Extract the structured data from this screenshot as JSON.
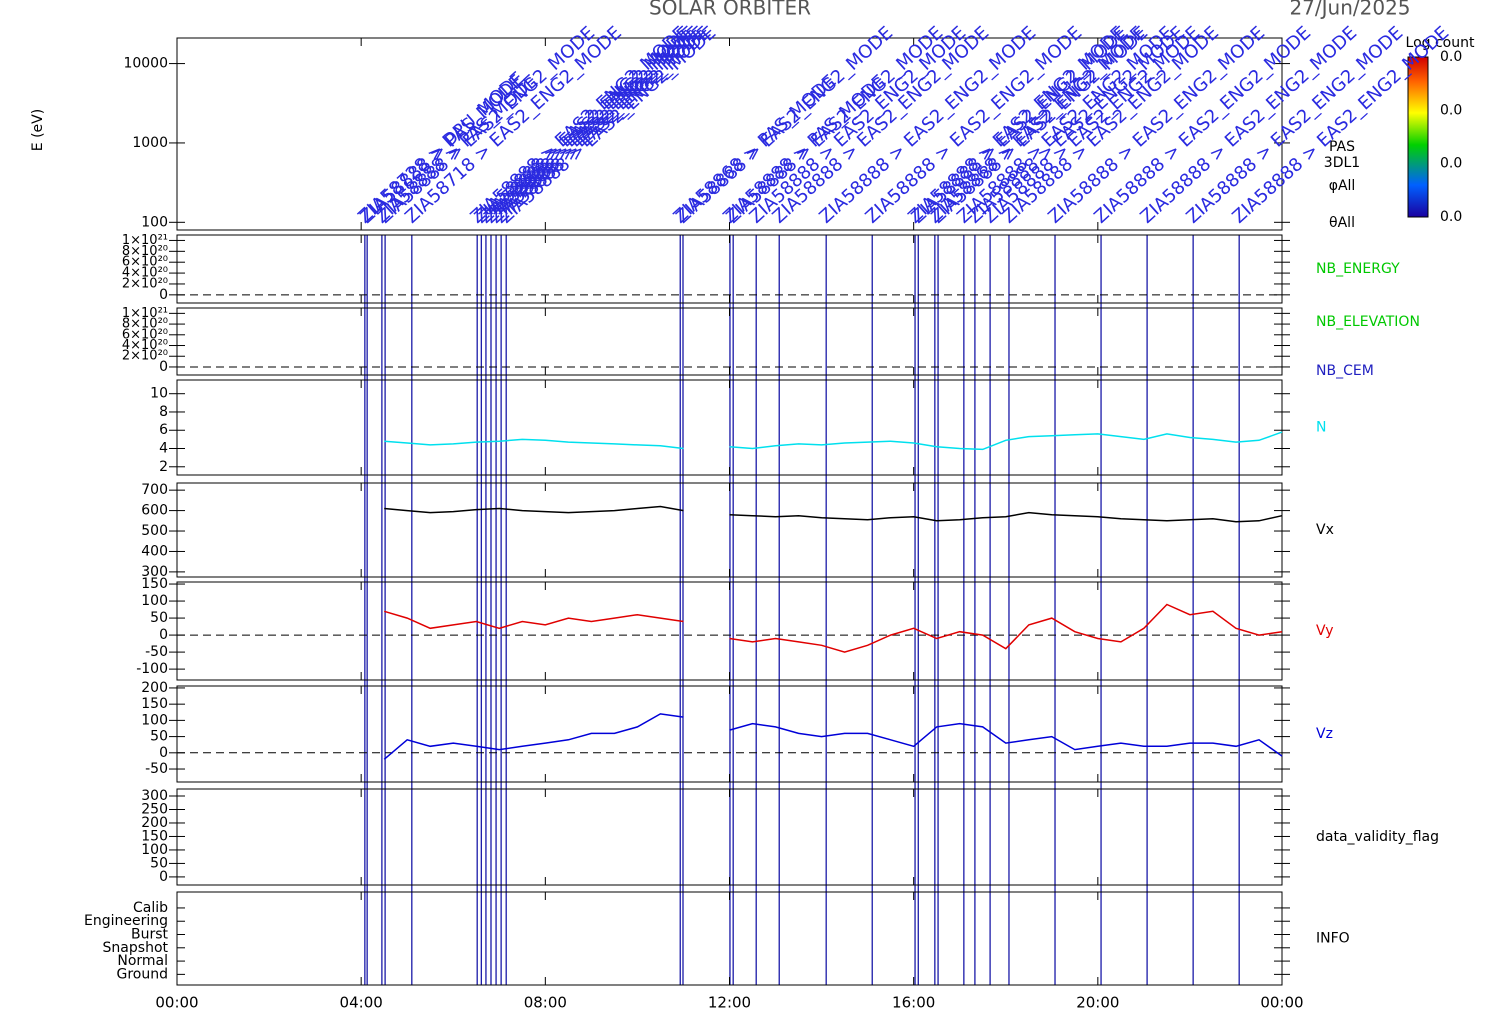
{
  "chart_data": [
    {
      "type": "heatmap",
      "title": "SOLAR ORBITER",
      "subtitle": "27/Jun/2025",
      "ylabel": "E (eV)",
      "log": true,
      "ylim": [
        80,
        21000
      ],
      "yticks": [
        100,
        1000,
        10000
      ],
      "side_labels": [
        "PAS",
        "3DL1",
        "φAll",
        "θAll"
      ],
      "colorbar": {
        "title": "Log count",
        "ticks": [
          "0.0",
          "0.0",
          "0.0",
          "0.0"
        ]
      },
      "events": [
        {
          "x": 4.08,
          "label": "ZIA58728 > DPU_MODE"
        },
        {
          "x": 4.13,
          "label": "ZIA58888 > PAS_MODE"
        },
        {
          "x": 4.45,
          "label": "ZIA58888 > PAS_MODE"
        },
        {
          "x": 4.52,
          "label": "ZIA58888 > EAS2_ENG2_MODE"
        },
        {
          "x": 5.1,
          "label": "ZIA58718 > EAS2_ENG2_MODE"
        },
        {
          "x": 6.52,
          "label": "ZIA58888 > EAS2_ENG2_MODE"
        },
        {
          "x": 6.61,
          "label": "ZIA58888 > EAS2_ENG2_MODE"
        },
        {
          "x": 6.71,
          "label": "ZIA58888 > EAS2_ENG2_MODE"
        },
        {
          "x": 6.82,
          "label": "ZIA58888 > EAS2_ENG2_MODE"
        },
        {
          "x": 6.93,
          "label": "ZIA58888 > EAS2_ENG2_MODE"
        },
        {
          "x": 7.04,
          "label": "ZIA58888 > EAS2_ENG2_MODE"
        },
        {
          "x": 7.15,
          "label": "ZIA58888 > EAS2_ENG2_MODE"
        },
        {
          "x": 10.93,
          "label": "ZIA58868 > PAS_MODE"
        },
        {
          "x": 10.99,
          "label": "ZIA58888 > EAS2_ENG2_MODE"
        },
        {
          "x": 12.01,
          "label": "ZIA58888 > PAS_MODE"
        },
        {
          "x": 12.08,
          "label": "ZIA58888 > EAS2_ENG2_MODE"
        },
        {
          "x": 12.58,
          "label": "ZIA58888 > EAS2_ENG2_MODE"
        },
        {
          "x": 13.08,
          "label": "ZIA58888 > EAS2_ENG2_MODE"
        },
        {
          "x": 14.1,
          "label": "ZIA58888 > EAS2_ENG2_MODE"
        },
        {
          "x": 15.1,
          "label": "ZIA58888 > EAS2_ENG2_MODE"
        },
        {
          "x": 16.03,
          "label": "ZIA58888 > EAS2_ENG2_MODE"
        },
        {
          "x": 16.1,
          "label": "ZIA58888 > EAS2_ENG2_MODE"
        },
        {
          "x": 16.46,
          "label": "ZIA58868 > EAS2_ENG2_MODE"
        },
        {
          "x": 16.53,
          "label": "ZIA58888 > EAS2_ENG2_MODE"
        },
        {
          "x": 17.09,
          "label": "ZIA58888 > EAS2_ENG2_MODE"
        },
        {
          "x": 17.33,
          "label": "ZIA58888 > EAS2_ENG2_MODE"
        },
        {
          "x": 17.66,
          "label": "ZIA58888 > EAS2_ENG2_MODE"
        },
        {
          "x": 18.07,
          "label": "ZIA58888 > EAS2_ENG2_MODE"
        },
        {
          "x": 19.07,
          "label": "ZIA58888 > EAS2_ENG2_MODE"
        },
        {
          "x": 20.07,
          "label": "ZIA58888 > EAS2_ENG2_MODE"
        },
        {
          "x": 21.07,
          "label": "ZIA58888 > EAS2_ENG2_MODE"
        },
        {
          "x": 22.07,
          "label": "ZIA58888 > EAS2_ENG2_MODE"
        },
        {
          "x": 23.07,
          "label": "ZIA58888 > EAS2_ENG2_MODE"
        }
      ]
    },
    {
      "type": "empty",
      "ylim": [
        -1.5e+20,
        1.1e+21
      ],
      "zero_line": true,
      "yticks": [
        0,
        {
          "value": 2e+20,
          "label": "2×10²⁰"
        },
        {
          "value": 4e+20,
          "label": "4×10²⁰"
        },
        {
          "value": 6e+20,
          "label": "6×10²⁰"
        },
        {
          "value": 8e+20,
          "label": "8×10²⁰"
        },
        {
          "value": 1e+21,
          "label": "1×10²¹"
        }
      ],
      "labels": [
        {
          "text": "NB_ENERGY",
          "color": "#00c800"
        }
      ]
    },
    {
      "type": "empty",
      "ylim": [
        -1.5e+20,
        1.1e+21
      ],
      "zero_line": true,
      "yticks": [
        0,
        {
          "value": 2e+20,
          "label": "2×10²⁰"
        },
        {
          "value": 4e+20,
          "label": "4×10²⁰"
        },
        {
          "value": 6e+20,
          "label": "6×10²⁰"
        },
        {
          "value": 8e+20,
          "label": "8×10²⁰"
        },
        {
          "value": 1e+21,
          "label": "1×10²¹"
        }
      ],
      "labels": [
        {
          "text": "NB_ELEVATION",
          "color": "#00c800"
        },
        {
          "text": "NB_CEM",
          "color": "#2020c0"
        }
      ]
    },
    {
      "type": "line",
      "ylim": [
        1.1,
        11.5
      ],
      "yticks": [
        2,
        4,
        6,
        8,
        10
      ],
      "x": [
        4.5,
        5,
        5.5,
        6,
        6.5,
        7,
        7.5,
        8,
        8.5,
        9,
        9.5,
        10,
        10.5,
        11,
        11.5,
        12,
        12.5,
        13,
        13.5,
        14,
        14.5,
        15,
        15.5,
        16,
        16.5,
        17,
        17.5,
        18,
        18.5,
        19,
        19.5,
        20,
        20.5,
        21,
        21.5,
        22,
        22.5,
        23,
        23.5,
        24
      ],
      "series": [
        {
          "name": "N",
          "color": "#00e0ee",
          "values": [
            4.8,
            4.6,
            4.4,
            4.5,
            4.7,
            4.8,
            5.0,
            4.9,
            4.7,
            4.6,
            4.5,
            4.4,
            4.3,
            4.0,
            null,
            4.2,
            4.0,
            4.3,
            4.5,
            4.4,
            4.6,
            4.7,
            4.8,
            4.6,
            4.2,
            4.0,
            3.9,
            4.9,
            5.3,
            5.4,
            5.5,
            5.6,
            5.3,
            5.0,
            5.6,
            5.2,
            5.0,
            4.7,
            4.9,
            5.8
          ]
        }
      ]
    },
    {
      "type": "line",
      "ylim": [
        275,
        735
      ],
      "yticks": [
        300,
        400,
        500,
        600,
        700
      ],
      "x": [
        4.5,
        5,
        5.5,
        6,
        6.5,
        7,
        7.5,
        8,
        8.5,
        9,
        9.5,
        10,
        10.5,
        11,
        11.5,
        12,
        12.5,
        13,
        13.5,
        14,
        14.5,
        15,
        15.5,
        16,
        16.5,
        17,
        17.5,
        18,
        18.5,
        19,
        19.5,
        20,
        20.5,
        21,
        21.5,
        22,
        22.5,
        23,
        23.5,
        24
      ],
      "series": [
        {
          "name": "Vx",
          "color": "#000000",
          "values": [
            610,
            600,
            590,
            595,
            605,
            610,
            600,
            595,
            590,
            595,
            600,
            610,
            620,
            600,
            null,
            580,
            575,
            570,
            575,
            565,
            560,
            555,
            565,
            570,
            550,
            555,
            565,
            570,
            590,
            580,
            575,
            570,
            560,
            555,
            550,
            555,
            560,
            545,
            550,
            575
          ]
        }
      ]
    },
    {
      "type": "line",
      "ylim": [
        -132,
        156
      ],
      "zero_line": true,
      "yticks": [
        -100,
        -50,
        0,
        50,
        100,
        150
      ],
      "x": [
        4.5,
        5,
        5.5,
        6,
        6.5,
        7,
        7.5,
        8,
        8.5,
        9,
        9.5,
        10,
        10.5,
        11,
        11.5,
        12,
        12.5,
        13,
        13.5,
        14,
        14.5,
        15,
        15.5,
        16,
        16.5,
        17,
        17.5,
        18,
        18.5,
        19,
        19.5,
        20,
        20.5,
        21,
        21.5,
        22,
        22.5,
        23,
        23.5,
        24
      ],
      "series": [
        {
          "name": "Vy",
          "color": "#e00000",
          "values": [
            70,
            50,
            20,
            30,
            40,
            20,
            40,
            30,
            50,
            40,
            50,
            60,
            50,
            40,
            null,
            -10,
            -20,
            -10,
            -20,
            -30,
            -50,
            -30,
            0,
            20,
            -10,
            10,
            0,
            -40,
            30,
            50,
            10,
            -10,
            -20,
            20,
            90,
            60,
            70,
            20,
            0,
            10
          ]
        }
      ]
    },
    {
      "type": "line",
      "ylim": [
        -90,
        206
      ],
      "zero_line": true,
      "yticks": [
        -50,
        0,
        50,
        100,
        150,
        200
      ],
      "x": [
        4.5,
        5,
        5.5,
        6,
        6.5,
        7,
        7.5,
        8,
        8.5,
        9,
        9.5,
        10,
        10.5,
        11,
        11.5,
        12,
        12.5,
        13,
        13.5,
        14,
        14.5,
        15,
        15.5,
        16,
        16.5,
        17,
        17.5,
        18,
        18.5,
        19,
        19.5,
        20,
        20.5,
        21,
        21.5,
        22,
        22.5,
        23,
        23.5,
        24
      ],
      "series": [
        {
          "name": "Vz",
          "color": "#0000d8",
          "values": [
            -20,
            40,
            20,
            30,
            20,
            10,
            20,
            30,
            40,
            60,
            60,
            80,
            120,
            110,
            null,
            70,
            90,
            80,
            60,
            50,
            60,
            60,
            40,
            20,
            80,
            90,
            80,
            30,
            40,
            50,
            10,
            20,
            30,
            20,
            20,
            30,
            30,
            20,
            40,
            -10
          ]
        }
      ]
    },
    {
      "type": "empty",
      "ylim": [
        -30,
        326
      ],
      "yticks": [
        0,
        50,
        100,
        150,
        200,
        250,
        300
      ],
      "labels": [
        {
          "text": "data_validity_flag",
          "color": "#000000"
        }
      ]
    },
    {
      "type": "category",
      "categories": [
        "Ground",
        "Normal",
        "Snapshot",
        "Burst",
        "Engineering",
        "Calib"
      ],
      "labels": [
        {
          "text": "INFO",
          "color": "#000000"
        }
      ],
      "xlim": [
        0,
        24
      ],
      "xticks": [
        {
          "value": 0,
          "label": "00:00"
        },
        {
          "value": 4,
          "label": "04:00"
        },
        {
          "value": 8,
          "label": "08:00"
        },
        {
          "value": 12,
          "label": "12:00"
        },
        {
          "value": 16,
          "label": "16:00"
        },
        {
          "value": 20,
          "label": "20:00"
        },
        {
          "value": 24,
          "label": "00:00"
        }
      ]
    }
  ]
}
